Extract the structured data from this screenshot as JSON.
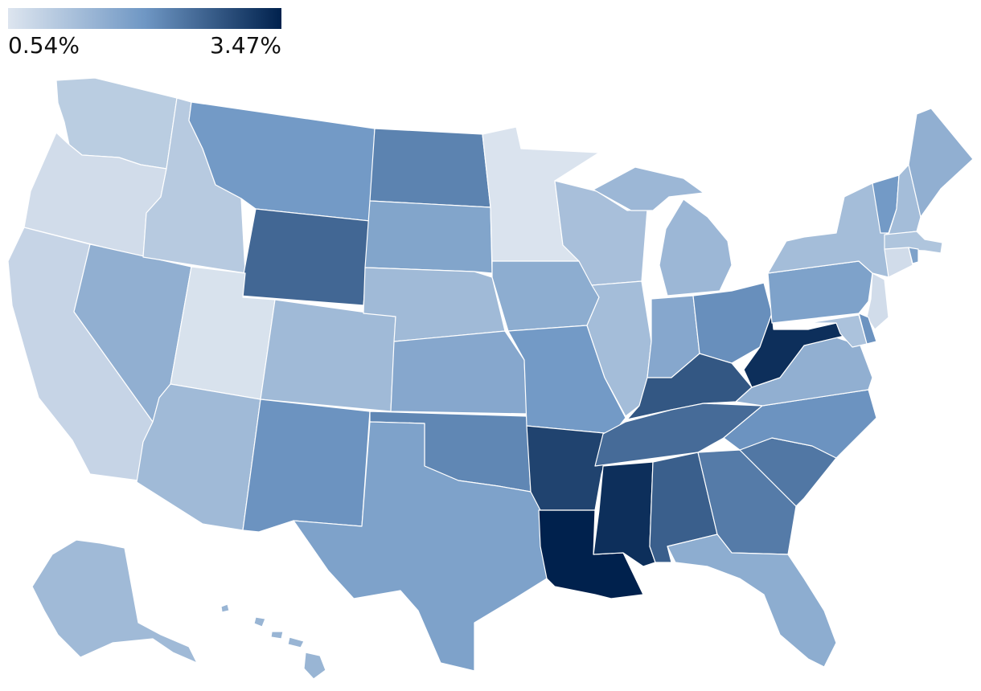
{
  "legend": {
    "min_label": "0.54%",
    "max_label": "3.47%",
    "min_value": 0.54,
    "max_value": 3.47,
    "color_low": "#dde5ef",
    "color_mid": "#6f97c4",
    "color_high": "#00214d"
  },
  "states": [
    {
      "id": "WA",
      "value": 1.0
    },
    {
      "id": "OR",
      "value": 0.7
    },
    {
      "id": "CA",
      "value": 0.85
    },
    {
      "id": "NV",
      "value": 1.55
    },
    {
      "id": "ID",
      "value": 1.05
    },
    {
      "id": "MT",
      "value": 1.95
    },
    {
      "id": "WY",
      "value": 2.6
    },
    {
      "id": "UT",
      "value": 0.6
    },
    {
      "id": "AZ",
      "value": 1.35
    },
    {
      "id": "CO",
      "value": 1.35
    },
    {
      "id": "NM",
      "value": 2.05
    },
    {
      "id": "ND",
      "value": 2.25
    },
    {
      "id": "SD",
      "value": 1.75
    },
    {
      "id": "NE",
      "value": 1.35
    },
    {
      "id": "KS",
      "value": 1.7
    },
    {
      "id": "OK",
      "value": 2.2
    },
    {
      "id": "TX",
      "value": 1.8
    },
    {
      "id": "MN",
      "value": 0.58
    },
    {
      "id": "IA",
      "value": 1.6
    },
    {
      "id": "MO",
      "value": 1.95
    },
    {
      "id": "AR",
      "value": 3.05
    },
    {
      "id": "LA",
      "value": 3.47
    },
    {
      "id": "WI",
      "value": 1.25
    },
    {
      "id": "IL",
      "value": 1.3
    },
    {
      "id": "MI",
      "value": 1.4
    },
    {
      "id": "IN",
      "value": 1.7
    },
    {
      "id": "OH",
      "value": 2.1
    },
    {
      "id": "KY",
      "value": 2.8
    },
    {
      "id": "TN",
      "value": 2.55
    },
    {
      "id": "MS",
      "value": 3.3
    },
    {
      "id": "AL",
      "value": 2.7
    },
    {
      "id": "GA",
      "value": 2.35
    },
    {
      "id": "FL",
      "value": 1.6
    },
    {
      "id": "SC",
      "value": 2.4
    },
    {
      "id": "NC",
      "value": 2.05
    },
    {
      "id": "VA",
      "value": 1.55
    },
    {
      "id": "WV",
      "value": 3.3
    },
    {
      "id": "PA",
      "value": 1.8
    },
    {
      "id": "NY",
      "value": 1.3
    },
    {
      "id": "VT",
      "value": 1.95
    },
    {
      "id": "NH",
      "value": 1.3
    },
    {
      "id": "ME",
      "value": 1.55
    },
    {
      "id": "MA",
      "value": 1.15
    },
    {
      "id": "CT",
      "value": 0.7
    },
    {
      "id": "RI",
      "value": 1.8
    },
    {
      "id": "NJ",
      "value": 0.7
    },
    {
      "id": "DE",
      "value": 2.05
    },
    {
      "id": "MD",
      "value": 1.2
    },
    {
      "id": "AK",
      "value": 1.35
    },
    {
      "id": "HI",
      "value": 1.45
    }
  ]
}
